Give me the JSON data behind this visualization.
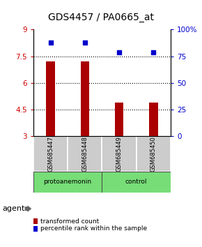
{
  "title": "GDS4457 / PA0665_at",
  "samples": [
    "GSM685447",
    "GSM685448",
    "GSM685449",
    "GSM685450"
  ],
  "bar_values": [
    7.2,
    7.2,
    4.9,
    4.9
  ],
  "percentile_values": [
    88,
    88,
    79,
    79
  ],
  "bar_color": "#aa0000",
  "dot_color": "#0000cc",
  "ylim_left": [
    3,
    9
  ],
  "ylim_right": [
    0,
    100
  ],
  "yticks_left": [
    3,
    4.5,
    6,
    7.5,
    9
  ],
  "yticks_right": [
    0,
    25,
    50,
    75,
    100
  ],
  "ytick_labels_left": [
    "3",
    "4.5",
    "6",
    "7.5",
    "9"
  ],
  "ytick_labels_right": [
    "0",
    "25",
    "50",
    "75",
    "100%"
  ],
  "hlines": [
    4.5,
    6.0,
    7.5
  ],
  "agent_label": "agent",
  "legend_bar_label": "transformed count",
  "legend_dot_label": "percentile rank within the sample",
  "title_fontsize": 10,
  "tick_fontsize": 7.5,
  "bar_width": 0.25,
  "plot_bg_color": "#ffffff",
  "sample_box_color": "#cccccc",
  "group_bar_color": "#77dd77",
  "left_tick_color": "#cc0000",
  "right_tick_color": "#0000cc",
  "group_configs": [
    [
      0,
      1,
      "protoanemonin"
    ],
    [
      2,
      3,
      "control"
    ]
  ]
}
